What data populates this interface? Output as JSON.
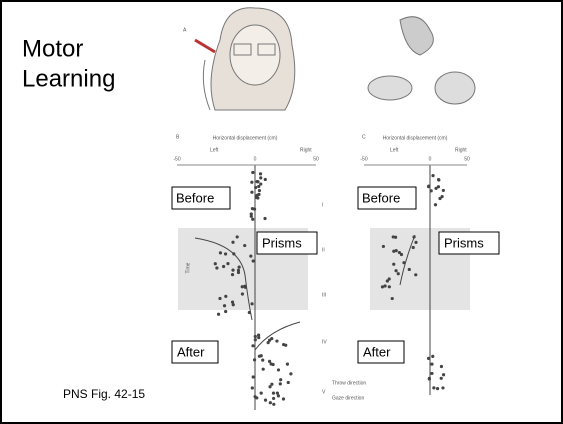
{
  "slide": {
    "title_lines": [
      "Motor",
      "Learning"
    ],
    "caption": "PNS Fig. 42-15"
  },
  "figure": {
    "panels": [
      "A",
      "B",
      "C"
    ],
    "axis_title": "Horizontal displacement (cm)",
    "left": "Left",
    "right": "Right",
    "ticks": [
      "-50",
      "0",
      "50"
    ],
    "time": "Time",
    "stages": [
      "I",
      "II",
      "III",
      "IV",
      "V"
    ],
    "throw": "Throw direction",
    "gaze": "Gaze direction"
  },
  "labels": {
    "before": "Before",
    "prisms": "Prisms",
    "after": "After"
  }
}
